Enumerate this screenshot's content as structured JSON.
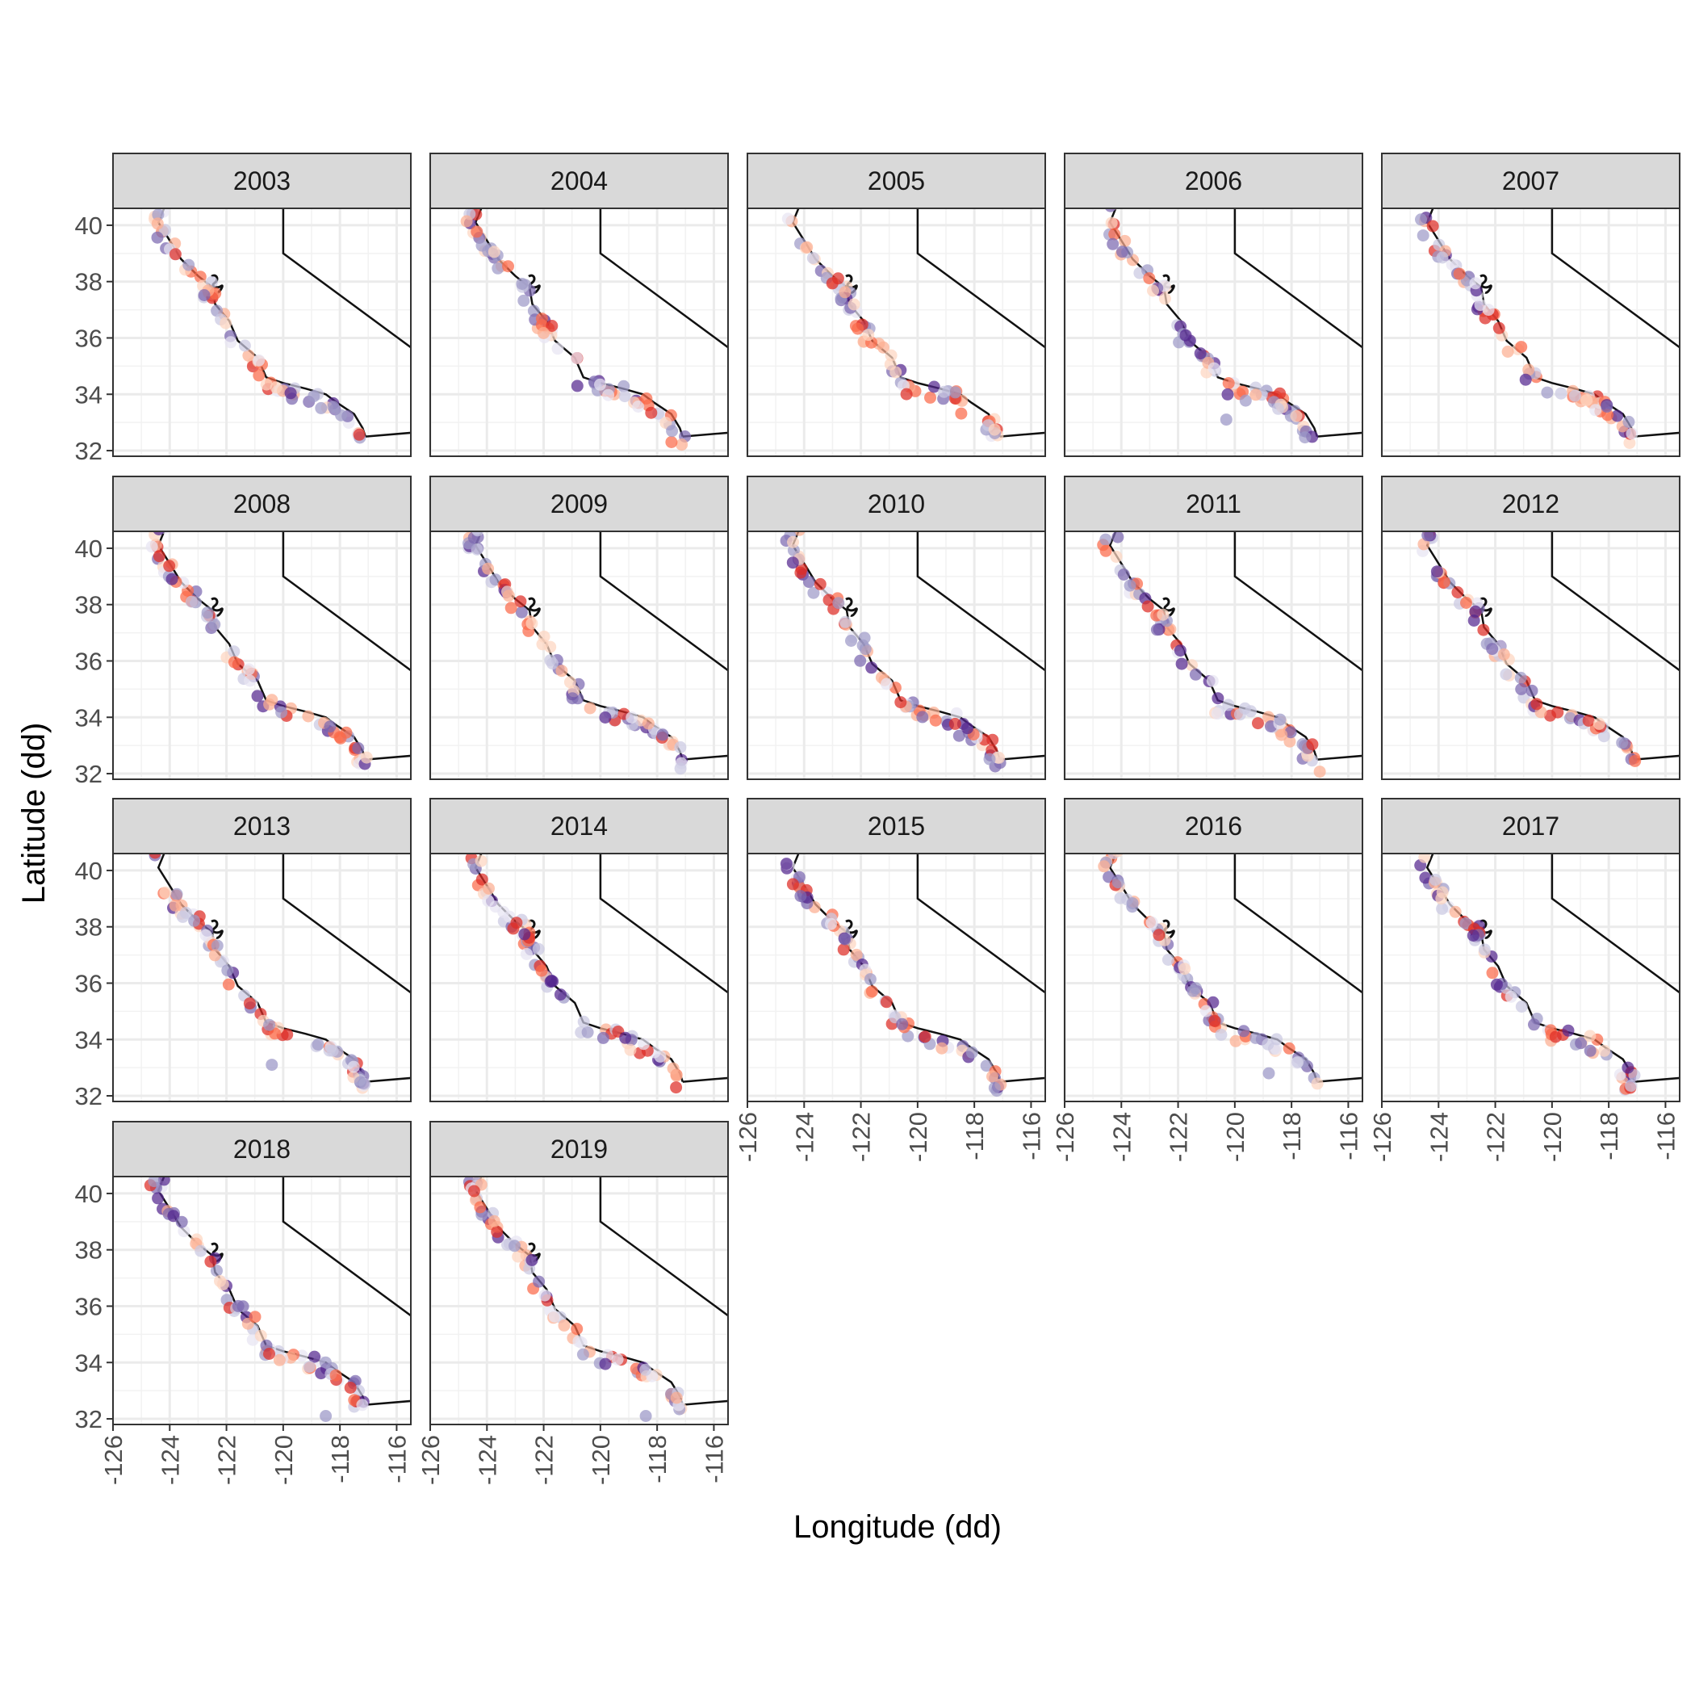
{
  "chart_data": {
    "type": "scatter",
    "kind": "faceted map",
    "xlabel": "Longitude (dd)",
    "ylabel": "Latitude (dd)",
    "xlim": [
      -126,
      -115.5
    ],
    "ylim": [
      31.8,
      40.6
    ],
    "x_ticks": [
      "-126",
      "-124",
      "-122",
      "-120",
      "-118",
      "-116"
    ],
    "y_ticks": [
      "40",
      "38",
      "36",
      "34",
      "32"
    ],
    "grid": true,
    "legend": "none",
    "point_colors": [
      "#54278f",
      "#7b68b0",
      "#9e9ac8",
      "#cbc9e2",
      "#e8e4f2",
      "#fdd5c0",
      "#fcae91",
      "#fb6a4a",
      "#de2d26"
    ],
    "facets": [
      {
        "label": "2003",
        "seed": 3
      },
      {
        "label": "2004",
        "seed": 4
      },
      {
        "label": "2005",
        "seed": 5
      },
      {
        "label": "2006",
        "seed": 6,
        "extra_points": [
          [
            -120.3,
            33.1
          ]
        ]
      },
      {
        "label": "2007",
        "seed": 7
      },
      {
        "label": "2008",
        "seed": 8
      },
      {
        "label": "2009",
        "seed": 9
      },
      {
        "label": "2010",
        "seed": 10
      },
      {
        "label": "2011",
        "seed": 11
      },
      {
        "label": "2012",
        "seed": 12
      },
      {
        "label": "2013",
        "seed": 13,
        "extra_points": [
          [
            -120.4,
            33.1
          ]
        ]
      },
      {
        "label": "2014",
        "seed": 14
      },
      {
        "label": "2015",
        "seed": 15
      },
      {
        "label": "2016",
        "seed": 16,
        "extra_points": [
          [
            -118.8,
            32.8
          ]
        ]
      },
      {
        "label": "2017",
        "seed": 17
      },
      {
        "label": "2018",
        "seed": 18,
        "extra_points": [
          [
            -118.5,
            32.1
          ]
        ]
      },
      {
        "label": "2019",
        "seed": 19,
        "extra_points": [
          [
            -118.4,
            32.1
          ]
        ]
      }
    ],
    "coastline": [
      [
        -124.2,
        40.6
      ],
      [
        -124.4,
        40.1
      ],
      [
        -123.9,
        39.3
      ],
      [
        -123.6,
        38.8
      ],
      [
        -123.0,
        38.2
      ],
      [
        -122.5,
        37.8
      ],
      [
        -122.4,
        37.2
      ],
      [
        -121.9,
        36.6
      ],
      [
        -121.6,
        35.9
      ],
      [
        -120.9,
        35.3
      ],
      [
        -120.6,
        34.6
      ],
      [
        -120.0,
        34.4
      ],
      [
        -119.2,
        34.2
      ],
      [
        -118.5,
        34.0
      ],
      [
        -118.1,
        33.7
      ],
      [
        -117.5,
        33.3
      ],
      [
        -117.2,
        32.8
      ],
      [
        -117.1,
        32.5
      ]
    ],
    "state_border": [
      [
        -120.0,
        40.6
      ],
      [
        -120.0,
        39.0
      ],
      [
        -114.6,
        35.0
      ],
      [
        -114.7,
        32.7
      ],
      [
        -117.1,
        32.5
      ]
    ]
  }
}
